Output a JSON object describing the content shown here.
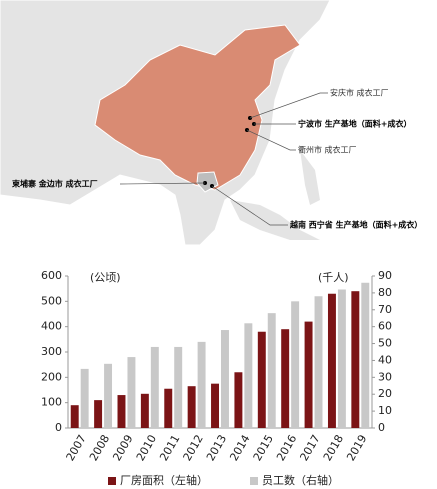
{
  "map": {
    "labels": [
      "安庆市 成衣工厂",
      "宁波市 生产基地（面料+成衣）",
      "衢州市 成衣工厂",
      "柬埔寨 金边市 成衣工厂",
      "越南 西宁省 生产基地（面料+成衣）"
    ]
  },
  "chart_data": {
    "type": "bar",
    "categories": [
      "2007",
      "2008",
      "2009",
      "2010",
      "2011",
      "2012",
      "2013",
      "2014",
      "2015",
      "2016",
      "2017",
      "2018",
      "2019"
    ],
    "series": [
      {
        "name": "厂房面积（左轴）",
        "color": "#7b1416",
        "values": [
          90,
          110,
          130,
          135,
          155,
          165,
          175,
          220,
          380,
          390,
          420,
          530,
          540
        ]
      },
      {
        "name": "员工数（右轴）",
        "color": "#c8c8c8",
        "axis": "y2",
        "values": [
          35,
          38,
          42,
          48,
          48,
          51,
          58,
          62,
          68,
          75,
          78,
          82,
          86
        ]
      }
    ],
    "ylabel": "(公顷)",
    "y2label": "(千人)",
    "ylim": [
      0,
      600
    ],
    "yticks": [
      0,
      100,
      200,
      300,
      400,
      500,
      600
    ],
    "y2lim": [
      0,
      90
    ],
    "y2ticks": [
      0,
      10,
      20,
      30,
      40,
      50,
      60,
      70,
      80,
      90
    ]
  }
}
